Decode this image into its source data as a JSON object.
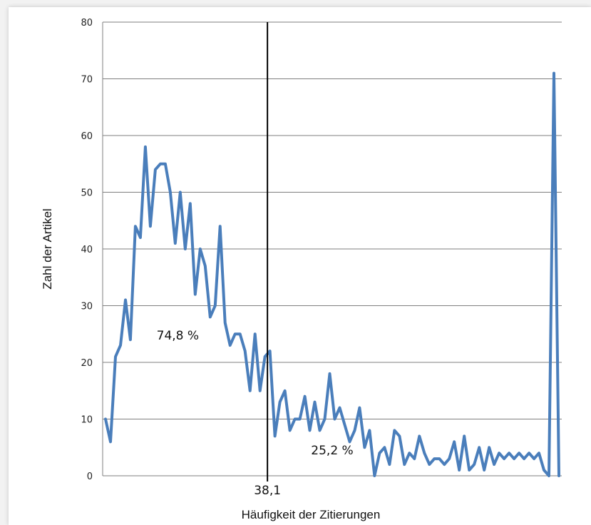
{
  "chart_data": {
    "type": "line",
    "xlabel": "Häufigkeit der Zitierungen",
    "ylabel": "Zahl der Artikel",
    "ylim": [
      0,
      80
    ],
    "yticks": [
      0,
      10,
      20,
      30,
      40,
      50,
      60,
      70,
      80
    ],
    "grid": true,
    "line_color": "#4a7ebb",
    "values": [
      10,
      6,
      21,
      23,
      31,
      24,
      44,
      42,
      58,
      44,
      54,
      55,
      55,
      50,
      41,
      50,
      40,
      48,
      32,
      40,
      37,
      28,
      30,
      44,
      27,
      23,
      25,
      25,
      22,
      15,
      25,
      15,
      21,
      22,
      7,
      13,
      15,
      8,
      10,
      10,
      14,
      8,
      13,
      8,
      10,
      18,
      10,
      12,
      9,
      6,
      8,
      12,
      5,
      8,
      0,
      4,
      5,
      2,
      8,
      7,
      2,
      4,
      3,
      7,
      4,
      2,
      3,
      3,
      2,
      3,
      6,
      1,
      7,
      1,
      2,
      5,
      1,
      5,
      2,
      4,
      3,
      4,
      3,
      4,
      3,
      4,
      3,
      4,
      1,
      0,
      71,
      0
    ],
    "vertical_line": {
      "label": "38,1",
      "index": 32.5
    },
    "annotations": [
      {
        "text": "74,8 %",
        "index": 14.5,
        "y": 24
      },
      {
        "text": "25,2 %",
        "index": 45.5,
        "y": 3.8
      }
    ]
  }
}
